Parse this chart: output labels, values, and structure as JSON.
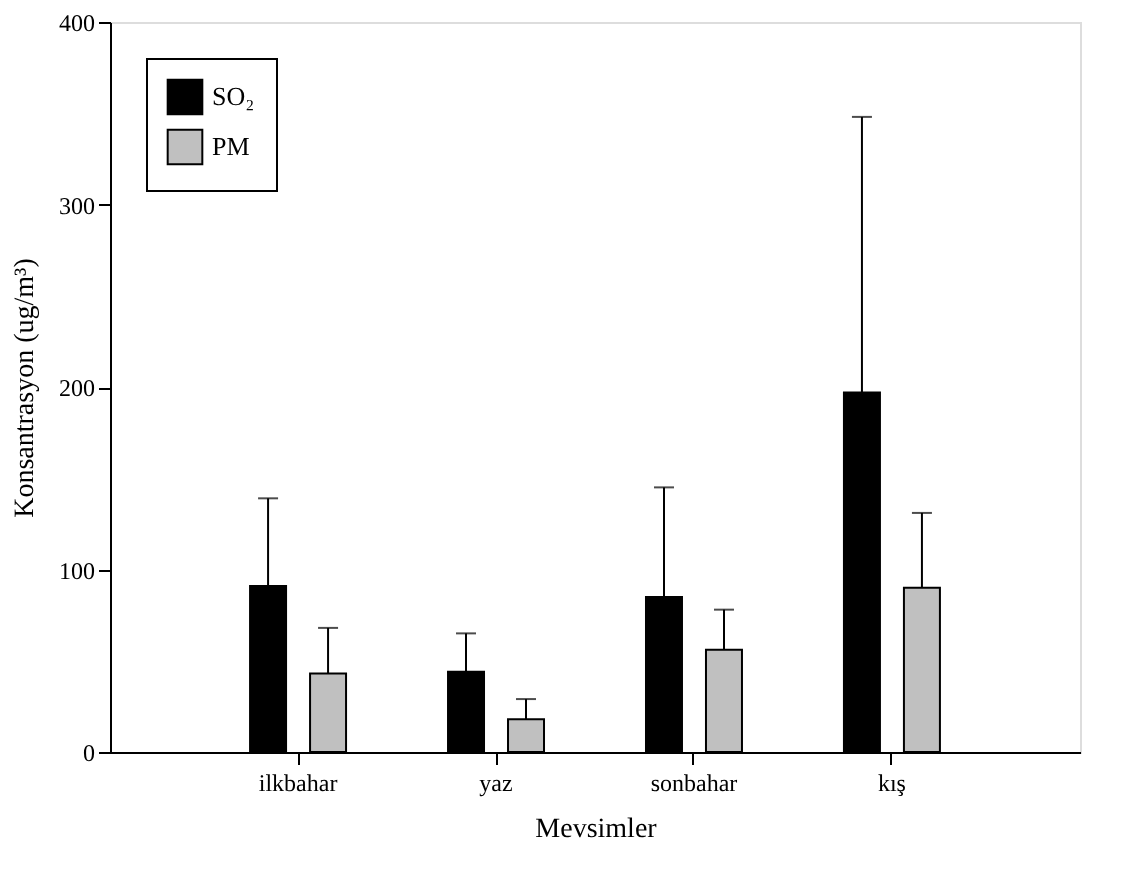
{
  "chart_data": {
    "type": "bar",
    "xlabel": "Mevsimler",
    "ylabel": "Konsantrasyon (ug/m³)",
    "categories": [
      "ilkbahar",
      "yaz",
      "sonbahar",
      "kış"
    ],
    "series": [
      {
        "name": "SO₂",
        "color": "#000000",
        "values": [
          91,
          44,
          85,
          197
        ],
        "errors": [
          [
            91,
            139
          ],
          [
            44,
            65
          ],
          [
            85,
            145
          ],
          [
            197,
            348
          ]
        ]
      },
      {
        "name": "PM",
        "color": "#c0c0c0",
        "values": [
          43,
          18,
          56,
          90
        ],
        "errors": [
          [
            43,
            68
          ],
          [
            18,
            29
          ],
          [
            56,
            78
          ],
          [
            90,
            131
          ]
        ]
      }
    ],
    "ylim": [
      0,
      400
    ],
    "yticks": [
      0,
      100,
      200,
      300,
      400
    ],
    "grid": false,
    "legend": "top left"
  }
}
